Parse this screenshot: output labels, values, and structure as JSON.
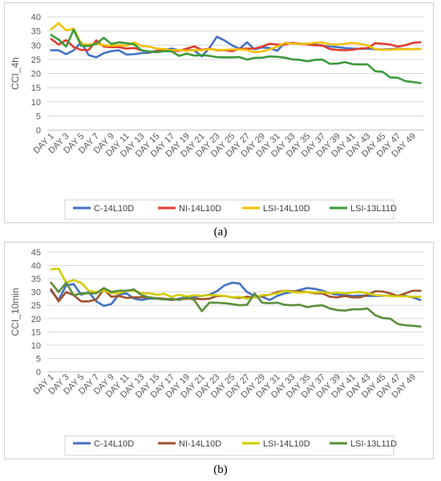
{
  "captions": [
    "(a)",
    "(b)"
  ],
  "chart_data": [
    {
      "type": "line",
      "ylabel": "CCI_4h",
      "xlabel": "",
      "ylim": [
        0,
        40
      ],
      "yticks": [
        0,
        5,
        10,
        15,
        20,
        25,
        30,
        35,
        40
      ],
      "grid": true,
      "legend": "bottom",
      "x_tick_labels": [
        "DAY 1",
        "DAY 3",
        "DAY 5",
        "DAY 7",
        "DAY 9",
        "DAY 11",
        "DAY 13",
        "DAY 15",
        "DAY 17",
        "DAY 19",
        "DAY 21",
        "DAY 23",
        "DAY 25",
        "DAY 27",
        "DAY 29",
        "DAY 31",
        "DAY 33",
        "DAY 35",
        "DAY 37",
        "DAY 39",
        "DAY 41",
        "DAY 43",
        "DAY 45",
        "DAY 47",
        "DAY 49"
      ],
      "series": [
        {
          "name": "C-14L10D",
          "color": "#4472C4",
          "values": [
            28.2,
            28.2,
            26.8,
            28.2,
            31.0,
            26.5,
            25.7,
            27.2,
            27.9,
            28.2,
            26.7,
            26.8,
            27.2,
            27.3,
            28.0,
            28.3,
            28.8,
            28.2,
            28.3,
            28.2,
            26.0,
            29.0,
            33.0,
            31.7,
            30.0,
            28.7,
            31.0,
            28.5,
            29.2,
            29.0,
            28.0,
            30.8,
            30.7,
            30.5,
            30.5,
            30.3,
            29.8,
            29.5,
            29.3,
            29.0,
            28.8,
            28.7,
            28.8,
            28.5,
            28.5,
            28.6,
            28.7,
            28.6,
            28.6,
            28.7
          ]
        },
        {
          "name": "NI-14L10D",
          "color": "#E03C31",
          "values": [
            32.2,
            30.2,
            31.8,
            29.3,
            28.3,
            28.3,
            31.7,
            29.5,
            29.3,
            29.3,
            28.8,
            29.0,
            28.2,
            27.7,
            27.8,
            28.6,
            27.9,
            28.0,
            28.8,
            29.6,
            28.3,
            28.8,
            28.2,
            28.2,
            27.9,
            28.7,
            28.8,
            28.8,
            29.5,
            30.5,
            30.2,
            30.2,
            30.8,
            30.5,
            30.2,
            30.0,
            29.9,
            28.6,
            28.3,
            28.2,
            28.4,
            28.8,
            29.0,
            30.7,
            30.5,
            30.2,
            29.5,
            30.0,
            30.8,
            31.0
          ]
        },
        {
          "name": "LSI-14L10D",
          "color": "#F5C000",
          "values": [
            35.6,
            37.8,
            35.2,
            35.8,
            30.5,
            30.2,
            30.5,
            30.0,
            29.8,
            30.0,
            29.8,
            31.0,
            29.7,
            29.5,
            28.8,
            28.6,
            28.2,
            28.3,
            28.0,
            28.3,
            28.2,
            28.6,
            28.3,
            28.3,
            28.5,
            28.5,
            28.3,
            27.5,
            27.8,
            28.5,
            29.5,
            30.8,
            30.5,
            30.4,
            30.5,
            30.9,
            30.9,
            30.3,
            30.2,
            30.5,
            30.8,
            30.5,
            29.9,
            28.6,
            28.4,
            28.4,
            28.6,
            28.5,
            28.6,
            28.7
          ]
        },
        {
          "name": "LSI-13L11D",
          "color": "#3C9A3C",
          "values": [
            33.6,
            32.0,
            29.5,
            35.5,
            29.8,
            29.7,
            30.5,
            32.6,
            30.4,
            31.0,
            30.7,
            30.3,
            28.2,
            27.8,
            27.5,
            27.9,
            27.8,
            26.2,
            27.0,
            26.3,
            26.5,
            26.2,
            25.8,
            25.7,
            25.7,
            25.8,
            24.9,
            25.5,
            25.6,
            26.0,
            25.9,
            25.6,
            25.0,
            24.8,
            24.3,
            24.8,
            24.9,
            23.4,
            23.5,
            24.0,
            23.3,
            23.2,
            23.2,
            20.8,
            20.6,
            18.6,
            18.5,
            17.3,
            17.0,
            16.6
          ]
        }
      ]
    },
    {
      "type": "line",
      "ylabel": "CCI_10min",
      "xlabel": "",
      "ylim": [
        0,
        45
      ],
      "yticks": [
        0,
        5,
        10,
        15,
        20,
        25,
        30,
        35,
        40,
        45
      ],
      "grid": true,
      "legend": "bottom",
      "x_tick_labels": [
        "DAY 1",
        "DAY 3",
        "DAY 5",
        "DAY 7",
        "DAY 9",
        "DAY 11",
        "DAY 13",
        "DAY 15",
        "DAY 17",
        "DAY 19",
        "DAY 21",
        "DAY 23",
        "DAY 25",
        "DAY 27",
        "DAY 29",
        "DAY 31",
        "DAY 33",
        "DAY 35",
        "DAY 37",
        "DAY 39",
        "DAY 41",
        "DAY 43",
        "DAY 45",
        "DAY 47",
        "DAY 49"
      ],
      "series": [
        {
          "name": "C-14L10D",
          "color": "#4472C4",
          "values": [
            30.5,
            27.0,
            32.5,
            33.0,
            29.0,
            30.0,
            26.5,
            24.8,
            25.5,
            29.0,
            29.5,
            27.5,
            27.0,
            27.5,
            27.5,
            27.3,
            27.0,
            27.5,
            28.2,
            28.2,
            28.5,
            29.0,
            30.3,
            32.5,
            33.5,
            33.2,
            30.0,
            28.5,
            28.2,
            27.0,
            28.5,
            29.5,
            30.0,
            30.8,
            31.5,
            31.2,
            30.5,
            29.5,
            29.0,
            28.8,
            28.5,
            28.7,
            28.5,
            28.5,
            28.6,
            28.7,
            28.5,
            28.6,
            28.0,
            27.0
          ]
        },
        {
          "name": "NI-14L10D",
          "color": "#A0522D",
          "values": [
            31.0,
            26.5,
            30.0,
            28.8,
            26.5,
            26.5,
            27.2,
            31.0,
            28.2,
            28.5,
            27.8,
            28.0,
            28.0,
            28.0,
            27.7,
            27.5,
            27.2,
            27.2,
            27.5,
            27.5,
            27.3,
            27.5,
            28.5,
            28.5,
            28.0,
            27.8,
            28.2,
            28.0,
            28.5,
            29.0,
            30.0,
            30.5,
            30.3,
            30.2,
            30.0,
            29.5,
            29.5,
            28.2,
            28.0,
            28.5,
            28.0,
            28.0,
            29.0,
            30.3,
            30.2,
            29.5,
            28.5,
            29.5,
            30.5,
            30.5
          ]
        },
        {
          "name": "LSI-14L10D",
          "color": "#D4CC00",
          "values": [
            38.5,
            38.8,
            33.5,
            34.5,
            33.5,
            30.5,
            30.0,
            30.5,
            29.7,
            29.5,
            30.5,
            30.5,
            29.5,
            29.5,
            29.0,
            29.3,
            28.2,
            29.0,
            28.3,
            28.8,
            28.5,
            28.8,
            28.8,
            28.5,
            28.0,
            28.2,
            27.5,
            28.0,
            28.8,
            29.0,
            29.5,
            30.5,
            30.0,
            29.8,
            30.0,
            29.8,
            30.0,
            29.5,
            29.8,
            29.5,
            29.8,
            30.0,
            29.5,
            28.8,
            28.7,
            28.5,
            28.4,
            28.4,
            28.2,
            28.2
          ]
        },
        {
          "name": "LSI-13L11D",
          "color": "#5A8F3C",
          "values": [
            33.5,
            30.0,
            33.5,
            28.8,
            29.5,
            29.5,
            29.5,
            31.5,
            30.0,
            30.5,
            30.5,
            31.0,
            28.8,
            28.0,
            27.5,
            27.2,
            27.5,
            27.0,
            28.0,
            27.0,
            22.8,
            26.0,
            26.0,
            25.8,
            25.5,
            25.0,
            25.2,
            29.5,
            26.0,
            25.8,
            26.0,
            25.2,
            25.0,
            25.2,
            24.3,
            24.8,
            25.0,
            23.8,
            23.2,
            23.0,
            23.5,
            23.5,
            23.8,
            21.3,
            20.2,
            20.0,
            18.0,
            17.5,
            17.3,
            17.0
          ]
        }
      ]
    }
  ]
}
